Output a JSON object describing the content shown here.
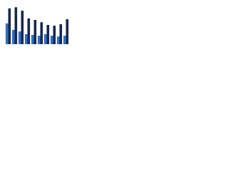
{
  "chart_data": {
    "type": "bar",
    "categories": [
      null,
      null,
      null,
      null,
      null,
      null,
      null,
      null,
      null,
      null
    ],
    "series": [
      {
        "color": "#2f6fc9",
        "values": [
          54,
          37,
          33,
          26,
          24,
          22,
          26,
          22,
          20,
          22
        ]
      },
      {
        "color": "#17284a",
        "values": [
          93,
          96,
          87,
          67,
          63,
          57,
          50,
          48,
          52,
          65
        ]
      }
    ],
    "ylim": [
      0,
      100
    ]
  }
}
